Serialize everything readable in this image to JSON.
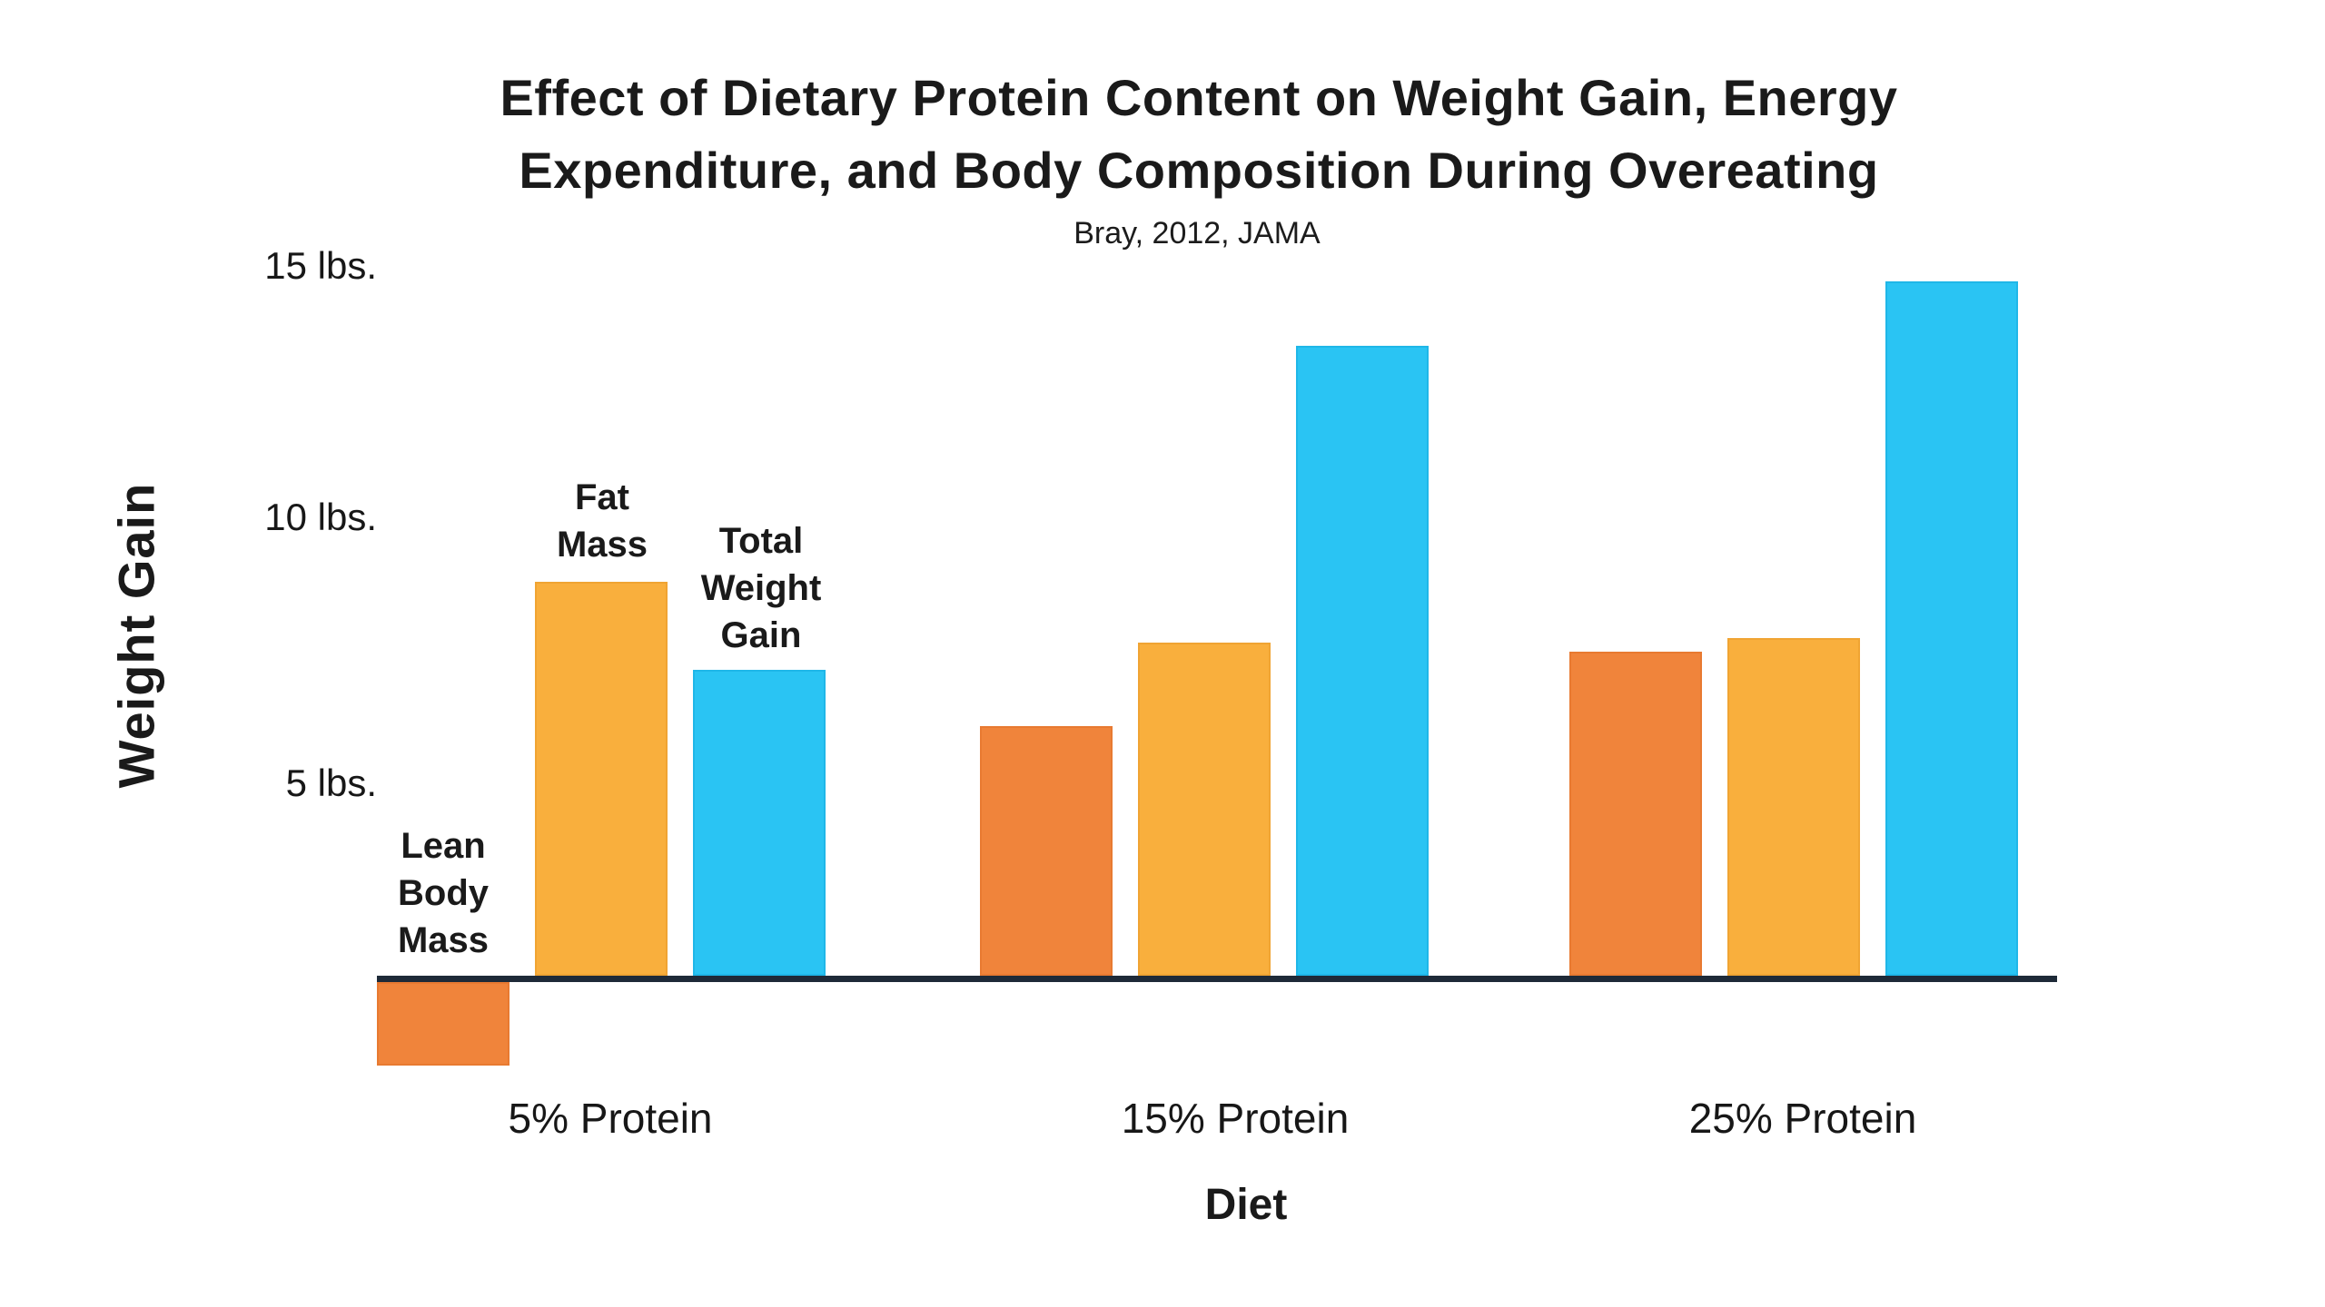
{
  "page": {
    "background": "#FFFFFF"
  },
  "chart_data": {
    "type": "bar",
    "title": "Effect of Dietary Protein Content on Weight Gain, Energy\nExpenditure, and Body Composition During Overeating",
    "subtitle": "Bray, 2012, JAMA",
    "xlabel": "Diet",
    "ylabel": "Weight Gain",
    "categories": [
      "5% Protein",
      "15% Protein",
      "25% Protein"
    ],
    "series": [
      {
        "name": "Lean Body Mass",
        "label_lines": "Lean\nBody\nMass",
        "color": "#F0843B",
        "border": "#E87A31",
        "values": [
          -1.8,
          5.4,
          7.0
        ]
      },
      {
        "name": "Fat Mass",
        "label_lines": "Fat\nMass",
        "color": "#F9AF3D",
        "border": "#F0A433",
        "values": [
          8.5,
          7.2,
          7.3
        ]
      },
      {
        "name": "Total Weight Gain",
        "label_lines": "Total\nWeight\nGain",
        "color": "#2AC4F3",
        "border": "#1FB7E8",
        "values": [
          6.6,
          13.6,
          15.0
        ]
      }
    ],
    "y_ticks": [
      15,
      10,
      5
    ],
    "y_tick_labels": [
      "15 lbs.",
      "10 lbs.",
      "5 lbs."
    ],
    "ylim": [
      -2.5,
      16
    ],
    "grid": false,
    "legend_position": "inline series labels above first bar group",
    "axis_line_color": "#1E2A38",
    "baseline_value": 0
  }
}
